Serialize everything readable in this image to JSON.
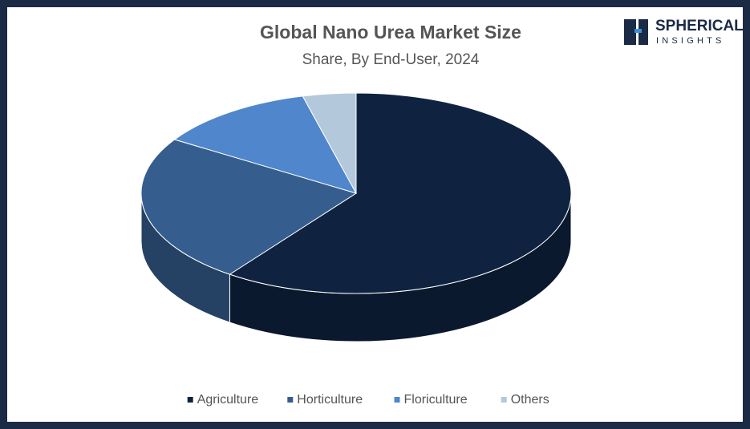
{
  "logo": {
    "line1": "SPHERICAL",
    "line2": "INSIGHTS"
  },
  "chart_data": {
    "type": "pie3d",
    "title": "Global Nano Urea Market Size",
    "subtitle": "Share, By End-User, 2024",
    "categories": [
      "Agriculture",
      "Horticulture",
      "Floriculture",
      "Others"
    ],
    "values": [
      60,
      24,
      12,
      4
    ],
    "colors": [
      "#0f2341",
      "#355e8f",
      "#4f86cc",
      "#b4c8dc"
    ],
    "legend": "bottom"
  }
}
